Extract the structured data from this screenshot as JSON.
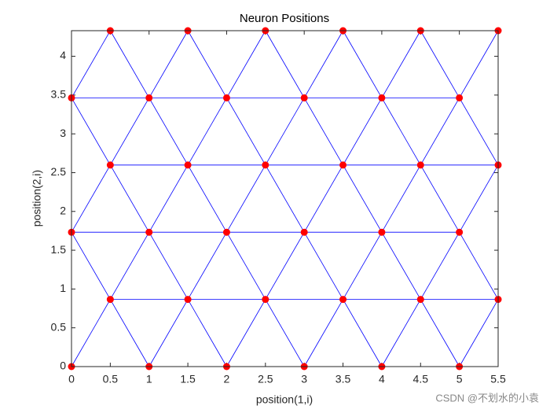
{
  "chart_data": {
    "type": "scatter",
    "title": "Neuron Positions",
    "x_label": "position(1,i)",
    "y_label": "position(2,i)",
    "x": [
      0,
      1,
      2,
      3,
      4,
      5,
      0.5,
      1.5,
      2.5,
      3.5,
      4.5,
      5.5,
      0,
      1,
      2,
      3,
      4,
      5,
      0.5,
      1.5,
      2.5,
      3.5,
      4.5,
      5.5,
      0,
      1,
      2,
      3,
      4,
      5,
      0.5,
      1.5,
      2.5,
      3.5,
      4.5,
      5.5
    ],
    "y": [
      0,
      0,
      0,
      0,
      0,
      0,
      0.866,
      0.866,
      0.866,
      0.866,
      0.866,
      0.866,
      1.732,
      1.732,
      1.732,
      1.732,
      1.732,
      1.732,
      2.598,
      2.598,
      2.598,
      2.598,
      2.598,
      2.598,
      3.464,
      3.464,
      3.464,
      3.464,
      3.464,
      3.464,
      4.33,
      4.33,
      4.33,
      4.33,
      4.33,
      4.33
    ],
    "color": "#ff0000",
    "link_color": "#0000ff",
    "xlim": [
      0,
      5.5
    ],
    "xticks": [
      0,
      0.5,
      1,
      1.5,
      2,
      2.5,
      3,
      3.5,
      4,
      4.5,
      5,
      5.5
    ],
    "ylim": [
      0,
      4.33
    ],
    "yticks": [
      0,
      0.5,
      1,
      1.5,
      2,
      2.5,
      3,
      3.5,
      4
    ],
    "watermark": "CSDN @不划水的小袁"
  }
}
